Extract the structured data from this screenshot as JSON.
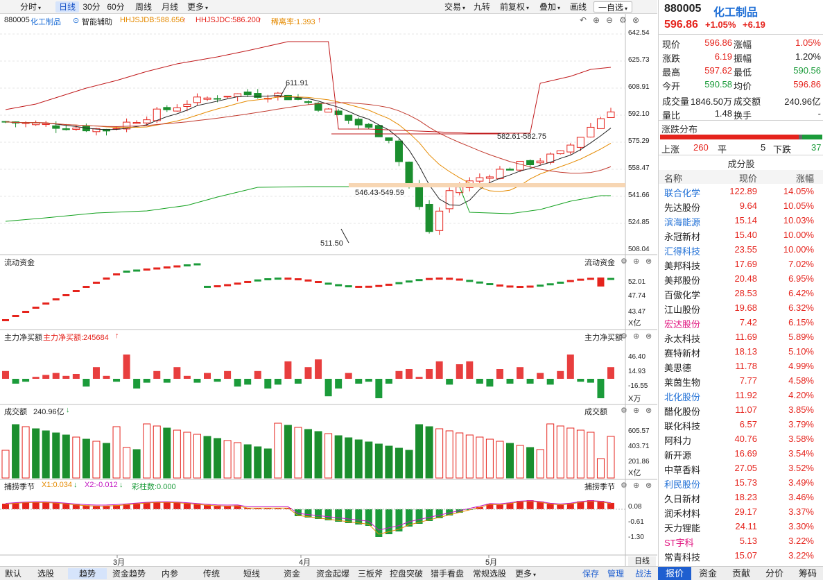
{
  "toolbar": {
    "left": [
      "分时",
      "日线",
      "30分",
      "60分",
      "周线",
      "月线",
      "更多"
    ],
    "right": [
      "交易",
      "九转",
      "前复权",
      "叠加",
      "画线",
      "一自选"
    ]
  },
  "main": {
    "code_name": "880005",
    "name": "化工制品",
    "assist": "智能辅助",
    "hhjsjdb": "HHJSJDB:588.656",
    "hhjsjdc": "HHJSJDC:586.200",
    "rate": "稀离率:1.393",
    "ylabels": [
      "642.54",
      "625.73",
      "608.91",
      "592.10",
      "575.29",
      "558.47",
      "541.66",
      "524.85",
      "508.04"
    ],
    "ann_high": "611.91",
    "ann_low": "511.50",
    "ann_zone1": "546.43-549.59",
    "ann_zone2": "582.61-582.75"
  },
  "liquidity": {
    "title": "流动资金",
    "title_r": "流动资金",
    "ylabels": [
      "52.01",
      "47.74",
      "43.47"
    ],
    "unit": "X亿"
  },
  "netbuy": {
    "title": "主力净买额",
    "value": "主力净买额:245684",
    "title_r": "主力净买额",
    "ylabels": [
      "46.40",
      "14.93",
      "-16.55"
    ],
    "unit": "X万"
  },
  "turnover": {
    "title": "成交额",
    "value": "240.96亿",
    "title_r": "成交额",
    "ylabels": [
      "605.57",
      "403.71",
      "201.86"
    ],
    "unit": "X亿"
  },
  "season": {
    "title": "捕捞季节",
    "x1": "X1:0.034",
    "x2": "X2:-0.012",
    "bar": "彩柱数:0.000",
    "title_r": "捕捞季节",
    "ylabels": [
      "0.08",
      "-0.61",
      "-1.30"
    ]
  },
  "months": [
    "3月",
    "4月",
    "5月"
  ],
  "rightpanel": {
    "code": "880005",
    "name": "化工制品",
    "price": "596.86",
    "pct": "+1.05%",
    "chg": "+6.19",
    "quote": [
      [
        "现价",
        "596.86",
        "涨幅",
        "1.05%"
      ],
      [
        "涨跌",
        "6.19",
        "振幅",
        "1.20%"
      ],
      [
        "最高",
        "597.62",
        "最低",
        "590.56"
      ],
      [
        "今开",
        "590.58",
        "均价",
        "596.86"
      ],
      [
        "成交量",
        "1846.50万",
        "成交额",
        "240.96亿"
      ],
      [
        "量比",
        "1.48",
        "换手",
        "-"
      ]
    ],
    "dist_title": "涨跌分布",
    "up_label": "上涨",
    "up": "260",
    "flat_label": "平",
    "flat": "5",
    "down_label": "下跌",
    "down": "37",
    "comp_title": "成分股",
    "cols": [
      "名称",
      "现价",
      "涨幅"
    ],
    "stocks": [
      [
        "联合化学",
        "122.89",
        "14.05%",
        "b"
      ],
      [
        "先达股份",
        "9.64",
        "10.05%",
        "k"
      ],
      [
        "滨海能源",
        "15.14",
        "10.03%",
        "b"
      ],
      [
        "永冠新材",
        "15.40",
        "10.00%",
        "k"
      ],
      [
        "汇得科技",
        "23.55",
        "10.00%",
        "b"
      ],
      [
        "美邦科技",
        "17.69",
        "7.02%",
        "k"
      ],
      [
        "美邦股份",
        "20.48",
        "6.95%",
        "k"
      ],
      [
        "百傲化学",
        "28.53",
        "6.42%",
        "k"
      ],
      [
        "江山股份",
        "19.68",
        "6.32%",
        "k"
      ],
      [
        "宏达股份",
        "7.42",
        "6.15%",
        "p"
      ],
      [
        "永太科技",
        "11.69",
        "5.89%",
        "k"
      ],
      [
        "赛特新材",
        "18.13",
        "5.10%",
        "k"
      ],
      [
        "美思德",
        "11.78",
        "4.99%",
        "k"
      ],
      [
        "莱茵生物",
        "7.77",
        "4.58%",
        "k"
      ],
      [
        "北化股份",
        "11.92",
        "4.20%",
        "b"
      ],
      [
        "醋化股份",
        "11.07",
        "3.85%",
        "k"
      ],
      [
        "联化科技",
        "6.57",
        "3.79%",
        "k"
      ],
      [
        "阿科力",
        "40.76",
        "3.58%",
        "k"
      ],
      [
        "新开源",
        "16.69",
        "3.54%",
        "k"
      ],
      [
        "中草香料",
        "27.05",
        "3.52%",
        "k"
      ],
      [
        "利民股份",
        "15.73",
        "3.49%",
        "b"
      ],
      [
        "久日新材",
        "18.23",
        "3.46%",
        "k"
      ],
      [
        "润禾材料",
        "29.17",
        "3.37%",
        "k"
      ],
      [
        "天力锂能",
        "24.11",
        "3.30%",
        "k"
      ],
      [
        "ST宇科",
        "5.13",
        "3.22%",
        "p"
      ],
      [
        "常青科技",
        "15.07",
        "3.22%",
        "k"
      ]
    ]
  },
  "bottombar": {
    "left": [
      "默认",
      "选股",
      "趋势",
      "资金趋势",
      "内参",
      "传统",
      "短线",
      "资金",
      "资金起爆",
      "三板斧",
      "控盘突破",
      "猎手看盘",
      "常规选股",
      "更多"
    ],
    "right_small": [
      "保存",
      "管理",
      "战法"
    ],
    "tabs": [
      "报价",
      "资金",
      "贡献",
      "分价",
      "筹码"
    ],
    "daily": "日线"
  }
}
